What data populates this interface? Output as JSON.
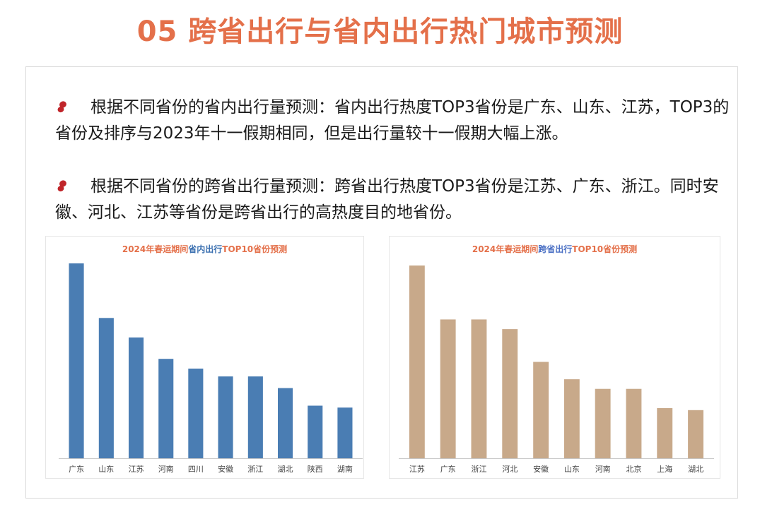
{
  "title": "05 跨省出行与省内出行热门城市预测",
  "bullets": [
    {
      "icon": "pin-icon",
      "text": "根据不同省份的省内出行量预测：省内出行热度TOP3省份是广东、山东、江苏，TOP3的省份及排序与2023年十一假期相同，但是出行量较十一假期大幅上涨。"
    },
    {
      "icon": "pin-icon",
      "text": "根据不同省份的跨省出行量预测：跨省出行热度TOP3省份是江苏、广东、浙江。同时安徽、河北、江苏等省份是跨省出行的高热度目的地省份。"
    }
  ],
  "colors": {
    "title": "#e4704a",
    "bullet_icon": "#c0252a",
    "bar_left": "#4a7db3",
    "bar_right": "#c8a98a"
  },
  "charts": {
    "left": {
      "title_pre": "2024年春运期间",
      "title_hl": "省内出行",
      "title_post": "TOP10省份预测"
    },
    "right": {
      "title_pre": "2024年春运期间",
      "title_hl": "跨省出行",
      "title_post": "TOP10省份预测"
    }
  },
  "chart_data": [
    {
      "type": "bar",
      "title": "2024年春运期间省内出行TOP10省份预测",
      "categories": [
        "广东",
        "山东",
        "江苏",
        "河南",
        "四川",
        "安徽",
        "浙江",
        "湖北",
        "陕西",
        "湖南"
      ],
      "values": [
        100,
        72,
        62,
        51,
        46,
        42,
        42,
        36,
        27,
        26
      ],
      "ylim": [
        0,
        100
      ],
      "grid": false,
      "color": "#4a7db3"
    },
    {
      "type": "bar",
      "title": "2024年春运期间跨省出行TOP10省份预测",
      "categories": [
        "江苏",
        "广东",
        "浙江",
        "河北",
        "安徽",
        "山东",
        "河南",
        "北京",
        "上海",
        "湖北"
      ],
      "values": [
        100,
        72,
        72,
        67,
        50,
        41,
        36,
        36,
        26,
        25
      ],
      "ylim": [
        0,
        100
      ],
      "grid": false,
      "color": "#c8a98a"
    }
  ]
}
